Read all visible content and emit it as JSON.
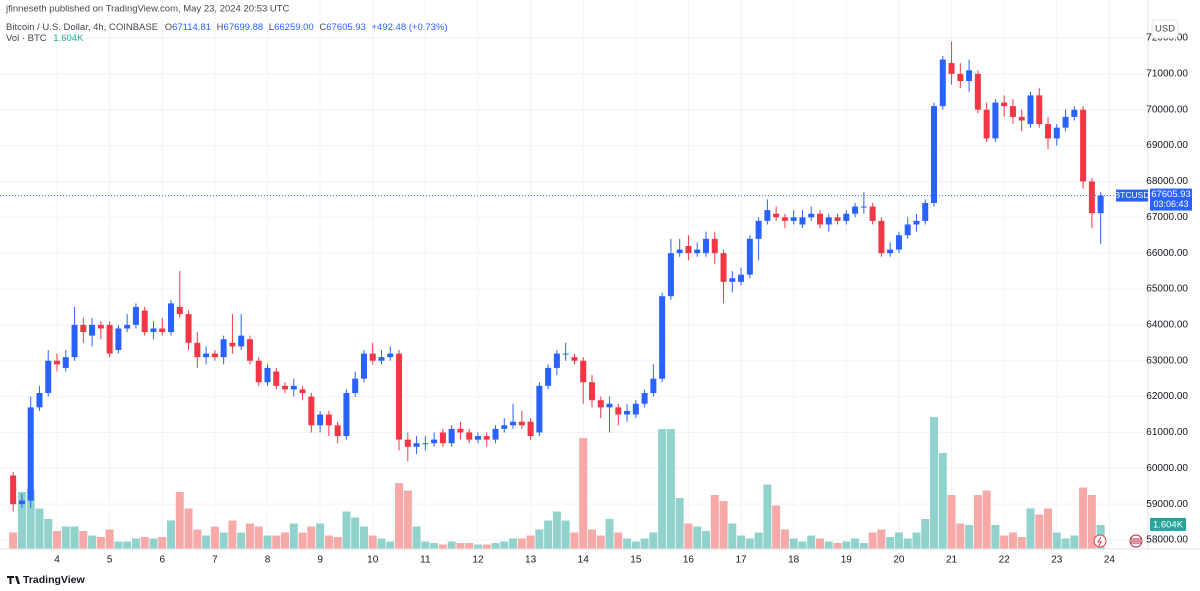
{
  "header": {
    "publisher": "jfinneseth published on TradingView.com, May 23, 2024 20:53 UTC",
    "symbol": "Bitcoin / U.S. Dollar, 4h, COINBASE",
    "ohlc": [
      [
        "O",
        "67114.81"
      ],
      [
        "H",
        "67699.88"
      ],
      [
        "L",
        "66259.00"
      ],
      [
        "C",
        "67605.93"
      ]
    ],
    "change": "+492.48 (+0.73%)",
    "volume_title": "Vol · BTC",
    "currency": "USD",
    "footer": "TradingView"
  },
  "chart_data": {
    "type": "candlestick",
    "open": [
      59800,
      59000,
      59100,
      61700,
      62100,
      63000,
      62800,
      63100,
      64000,
      63700,
      64000,
      64000,
      63300,
      63900,
      64000,
      64400,
      63800,
      63900,
      63800,
      64500,
      64300,
      63500,
      63100,
      63200,
      63100,
      63500,
      63400,
      63600,
      63000,
      62400,
      62700,
      62300,
      62200,
      62200,
      62000,
      61200,
      61500,
      61200,
      60900,
      62100,
      62500,
      63200,
      63000,
      63100,
      63200,
      60800,
      60600,
      60700,
      60700,
      61000,
      60700,
      61100,
      61000,
      60800,
      60900,
      60800,
      61100,
      61200,
      61300,
      61300,
      61000,
      62300,
      62800,
      63200,
      63100,
      63000,
      62400,
      61900,
      61700,
      61700,
      61500,
      61500,
      61800,
      62100,
      62500,
      64800,
      66000,
      66200,
      66000,
      66000,
      66400,
      66000,
      65200,
      65200,
      65400,
      66400,
      66900,
      67100,
      67000,
      66900,
      66800,
      67000,
      67100,
      66800,
      67000,
      66900,
      67100,
      67300,
      67300,
      66900,
      66000,
      66100,
      66500,
      66800,
      66900,
      67400,
      70100,
      71300,
      71000,
      70800,
      71000,
      70000,
      69200,
      70200,
      70100,
      69800,
      69600,
      70400,
      69600,
      69200,
      69500,
      69800,
      70000,
      68000,
      67114.81
    ],
    "high": [
      59900,
      59300,
      62000,
      62300,
      63300,
      63200,
      63300,
      64500,
      64200,
      64200,
      64100,
      64100,
      64000,
      64300,
      64600,
      64500,
      64100,
      64200,
      64700,
      65500,
      64400,
      63800,
      63400,
      63300,
      63700,
      64300,
      64300,
      63700,
      63100,
      62900,
      62800,
      62400,
      62500,
      62300,
      62100,
      61600,
      61600,
      61300,
      62200,
      62700,
      63300,
      63500,
      63300,
      63400,
      63300,
      61000,
      60900,
      60900,
      61000,
      61100,
      61200,
      61300,
      61100,
      61000,
      61000,
      61200,
      61400,
      61800,
      61600,
      61400,
      62400,
      62900,
      63300,
      63500,
      63200,
      63100,
      62600,
      62000,
      62000,
      61800,
      61800,
      61900,
      62200,
      62900,
      64900,
      66400,
      66400,
      66500,
      66300,
      66600,
      66600,
      66100,
      65500,
      65600,
      66500,
      67000,
      67500,
      67300,
      67100,
      67200,
      67200,
      67300,
      67200,
      67100,
      67100,
      67200,
      67400,
      67700,
      67400,
      67000,
      66300,
      66600,
      67000,
      67100,
      67500,
      70200,
      71500,
      71900,
      71300,
      71400,
      71100,
      70200,
      70300,
      70400,
      70300,
      70000,
      70500,
      70600,
      69800,
      69600,
      70000,
      70100,
      70100,
      68100,
      67699.88
    ],
    "low": [
      58800,
      58900,
      58900,
      61600,
      62000,
      62700,
      62700,
      63000,
      63500,
      63400,
      63600,
      63100,
      63200,
      63800,
      63900,
      63700,
      63600,
      63700,
      63700,
      64200,
      63300,
      62800,
      62900,
      63000,
      62900,
      63200,
      63300,
      62900,
      62300,
      62300,
      62200,
      62100,
      62000,
      61900,
      61000,
      61000,
      60900,
      60700,
      60800,
      62000,
      62400,
      62900,
      62900,
      63000,
      60500,
      60200,
      60400,
      60500,
      60600,
      60600,
      60600,
      60800,
      60700,
      60700,
      60600,
      60700,
      61000,
      61100,
      61100,
      60800,
      60900,
      62200,
      62600,
      63000,
      62900,
      61800,
      61700,
      61400,
      61000,
      61200,
      61300,
      61400,
      61700,
      62000,
      62400,
      64700,
      65900,
      65800,
      65900,
      65900,
      65700,
      64600,
      64900,
      65100,
      65300,
      65800,
      66800,
      66900,
      66700,
      66800,
      66700,
      66900,
      66700,
      66600,
      66800,
      66800,
      67000,
      67100,
      66800,
      65900,
      65900,
      66000,
      66400,
      66600,
      66800,
      67300,
      70000,
      70700,
      70600,
      70500,
      69900,
      69100,
      69100,
      69800,
      69600,
      69400,
      69500,
      69500,
      68900,
      69000,
      69400,
      69700,
      67800,
      66700,
      66259
    ],
    "close": [
      59000,
      59100,
      61700,
      62100,
      63000,
      62900,
      63100,
      64000,
      63800,
      64000,
      63900,
      63200,
      63900,
      64000,
      64500,
      63800,
      63900,
      63800,
      64600,
      64300,
      63500,
      63100,
      63200,
      63100,
      63600,
      63400,
      63700,
      63000,
      62400,
      62800,
      62300,
      62200,
      62300,
      62100,
      61200,
      61500,
      61200,
      60900,
      62100,
      62500,
      63200,
      63000,
      63100,
      63200,
      60800,
      60600,
      60700,
      60700,
      60800,
      60700,
      61100,
      61000,
      60800,
      60900,
      60800,
      61100,
      61200,
      61300,
      61200,
      60900,
      62300,
      62800,
      63200,
      63200,
      63000,
      62400,
      61900,
      61700,
      61800,
      61500,
      61600,
      61800,
      62100,
      62500,
      64800,
      66000,
      66100,
      66000,
      66100,
      66400,
      66000,
      65200,
      65300,
      65400,
      66400,
      66900,
      67200,
      67000,
      66900,
      67000,
      67000,
      67100,
      66800,
      67000,
      66900,
      67100,
      67300,
      67300,
      66900,
      66000,
      66100,
      66500,
      66800,
      66900,
      67400,
      70100,
      71400,
      71000,
      70800,
      71100,
      70000,
      69200,
      70200,
      70100,
      69800,
      69700,
      70400,
      69600,
      69200,
      69500,
      69800,
      70000,
      68000,
      67115,
      67605.93
    ],
    "volume": [
      1100,
      3800,
      4000,
      2700,
      2000,
      1200,
      1500,
      1500,
      1200,
      900,
      800,
      1300,
      500,
      500,
      700,
      800,
      700,
      800,
      1900,
      3800,
      2700,
      1300,
      900,
      1500,
      1100,
      1900,
      1100,
      1700,
      1500,
      900,
      900,
      1100,
      1700,
      1100,
      1500,
      1700,
      900,
      800,
      2500,
      2100,
      1500,
      900,
      700,
      500,
      4400,
      3900,
      1500,
      500,
      400,
      300,
      500,
      400,
      400,
      300,
      300,
      400,
      500,
      700,
      700,
      900,
      1300,
      1900,
      2500,
      1900,
      1100,
      7400,
      1300,
      900,
      2000,
      1100,
      700,
      500,
      700,
      1100,
      8000,
      8000,
      3400,
      1700,
      1500,
      1200,
      3600,
      3200,
      1700,
      900,
      700,
      1100,
      4300,
      2900,
      1300,
      700,
      500,
      900,
      700,
      500,
      400,
      500,
      700,
      400,
      1100,
      1300,
      800,
      1100,
      700,
      1100,
      2000,
      8800,
      6400,
      3600,
      1700,
      1600,
      3600,
      3900,
      1600,
      900,
      1100,
      800,
      2700,
      2300,
      2700,
      1100,
      700,
      900,
      4100,
      3600,
      1604
    ],
    "last_volume_label": "1.604K",
    "symbol_label": "BTCUSD",
    "last_price_label": "67605.93",
    "countdown": "03:06:43",
    "up_color": "#2962ff",
    "down_color": "#f23645",
    "volume_up_color": "#92d2cc",
    "volume_down_color": "#f7a9a7",
    "ylim": [
      57750,
      73060
    ],
    "yticks": [
      {
        "value": 58000,
        "label": "58000.00"
      },
      {
        "value": 59000,
        "label": "59000.00"
      },
      {
        "value": 60000,
        "label": "60000.00"
      },
      {
        "value": 61000,
        "label": "61000.00"
      },
      {
        "value": 62000,
        "label": "62000.00"
      },
      {
        "value": 63000,
        "label": "63000.00"
      },
      {
        "value": 64000,
        "label": "64000.00"
      },
      {
        "value": 65000,
        "label": "65000.00"
      },
      {
        "value": 66000,
        "label": "66000.00"
      },
      {
        "value": 67000,
        "label": "67000.00"
      },
      {
        "value": 68000,
        "label": "68000.00"
      },
      {
        "value": 69000,
        "label": "69000.00"
      },
      {
        "value": 70000,
        "label": "70000.00"
      },
      {
        "value": 71000,
        "label": "71000.00"
      },
      {
        "value": 72000,
        "label": "72000.00"
      }
    ],
    "xlim": [
      -1.5,
      129.4
    ],
    "xticks": [
      {
        "value": 5,
        "label": "4"
      },
      {
        "value": 11,
        "label": "5"
      },
      {
        "value": 17,
        "label": "6"
      },
      {
        "value": 23,
        "label": "7"
      },
      {
        "value": 29,
        "label": "8"
      },
      {
        "value": 35,
        "label": "9"
      },
      {
        "value": 41,
        "label": "10"
      },
      {
        "value": 47,
        "label": "11"
      },
      {
        "value": 53,
        "label": "12"
      },
      {
        "value": 59,
        "label": "13"
      },
      {
        "value": 65,
        "label": "14"
      },
      {
        "value": 71,
        "label": "15"
      },
      {
        "value": 77,
        "label": "16"
      },
      {
        "value": 83,
        "label": "17"
      },
      {
        "value": 89,
        "label": "18"
      },
      {
        "value": 95,
        "label": "19"
      },
      {
        "value": 101,
        "label": "20"
      },
      {
        "value": 107,
        "label": "21"
      },
      {
        "value": 113,
        "label": "22"
      },
      {
        "value": 119,
        "label": "23"
      },
      {
        "value": 125,
        "label": "24"
      }
    ],
    "volume_lim": [
      0,
      9000
    ],
    "grid": true
  }
}
